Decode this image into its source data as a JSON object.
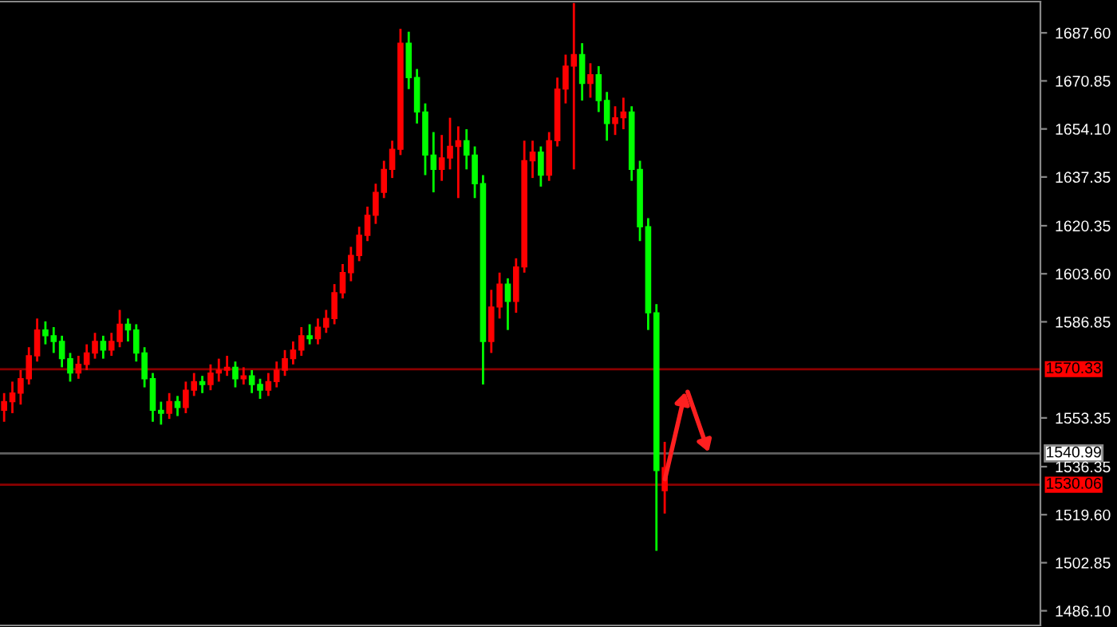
{
  "chart_data": {
    "type": "candlestick",
    "categories": [
      null,
      null,
      null,
      null,
      null,
      null,
      null,
      null,
      null,
      null,
      null,
      null,
      null,
      null,
      null,
      null,
      null,
      null,
      null,
      null,
      null,
      null,
      null,
      null,
      null,
      null,
      null,
      null,
      null,
      null,
      null,
      null,
      null,
      null,
      null,
      null,
      null,
      null,
      null,
      null,
      null,
      null,
      null,
      null,
      null,
      null,
      null,
      null,
      null,
      null,
      null,
      null,
      null,
      null,
      null,
      null,
      null,
      null,
      null,
      null,
      null,
      null,
      null,
      null,
      null,
      null,
      null,
      null,
      null,
      null,
      null,
      null,
      null,
      null,
      null,
      null,
      null,
      null,
      null,
      null,
      null,
      null,
      null,
      null,
      null,
      null,
      null,
      null,
      null,
      null,
      null,
      null,
      null,
      null,
      null,
      null,
      null,
      null,
      null,
      null,
      null,
      null,
      null,
      null,
      null,
      null,
      null,
      null,
      null,
      null,
      null,
      null,
      null,
      null,
      null,
      null,
      null,
      null,
      null,
      null,
      null,
      null,
      null,
      null,
      null,
      null
    ],
    "ohlc": [
      [
        1556,
        1562,
        1552,
        1559
      ],
      [
        1559,
        1566,
        1555,
        1562
      ],
      [
        1562,
        1570,
        1558,
        1567
      ],
      [
        1567,
        1578,
        1565,
        1575
      ],
      [
        1575,
        1588,
        1573,
        1584
      ],
      [
        1584,
        1587,
        1579,
        1582
      ],
      [
        1582,
        1585,
        1576,
        1580
      ],
      [
        1580,
        1582,
        1571,
        1574
      ],
      [
        1574,
        1576,
        1566,
        1569
      ],
      [
        1569,
        1575,
        1567,
        1572
      ],
      [
        1572,
        1579,
        1570,
        1576
      ],
      [
        1576,
        1583,
        1574,
        1580
      ],
      [
        1580,
        1582,
        1574,
        1577
      ],
      [
        1577,
        1583,
        1575,
        1580
      ],
      [
        1580,
        1591,
        1578,
        1586
      ],
      [
        1586,
        1588,
        1580,
        1584
      ],
      [
        1584,
        1586,
        1573,
        1576
      ],
      [
        1576,
        1578,
        1564,
        1567
      ],
      [
        1567,
        1569,
        1552,
        1556
      ],
      [
        1556,
        1559,
        1551,
        1555
      ],
      [
        1555,
        1562,
        1553,
        1559
      ],
      [
        1559,
        1561,
        1554,
        1557
      ],
      [
        1557,
        1566,
        1555,
        1563
      ],
      [
        1563,
        1569,
        1561,
        1566
      ],
      [
        1566,
        1568,
        1562,
        1565
      ],
      [
        1565,
        1572,
        1563,
        1569
      ],
      [
        1569,
        1574,
        1566,
        1570
      ],
      [
        1570,
        1575,
        1568,
        1571
      ],
      [
        1571,
        1573,
        1564,
        1567
      ],
      [
        1567,
        1571,
        1565,
        1568
      ],
      [
        1568,
        1570,
        1562,
        1565
      ],
      [
        1565,
        1567,
        1560,
        1563
      ],
      [
        1563,
        1569,
        1561,
        1566
      ],
      [
        1566,
        1573,
        1564,
        1570
      ],
      [
        1570,
        1577,
        1568,
        1574
      ],
      [
        1574,
        1580,
        1572,
        1577
      ],
      [
        1577,
        1585,
        1575,
        1582
      ],
      [
        1582,
        1586,
        1579,
        1581
      ],
      [
        1581,
        1588,
        1579,
        1585
      ],
      [
        1585,
        1591,
        1583,
        1588
      ],
      [
        1588,
        1600,
        1586,
        1597
      ],
      [
        1597,
        1607,
        1595,
        1604
      ],
      [
        1604,
        1613,
        1601,
        1610
      ],
      [
        1610,
        1620,
        1608,
        1617
      ],
      [
        1617,
        1627,
        1615,
        1624
      ],
      [
        1624,
        1635,
        1621,
        1632
      ],
      [
        1632,
        1643,
        1630,
        1640
      ],
      [
        1640,
        1650,
        1637,
        1647
      ],
      [
        1647,
        1689,
        1645,
        1684
      ],
      [
        1684,
        1688,
        1668,
        1672
      ],
      [
        1672,
        1675,
        1656,
        1660
      ],
      [
        1660,
        1663,
        1638,
        1645
      ],
      [
        1645,
        1653,
        1632,
        1640
      ],
      [
        1640,
        1652,
        1636,
        1644
      ],
      [
        1644,
        1658,
        1640,
        1648
      ],
      [
        1648,
        1655,
        1630,
        1650
      ],
      [
        1650,
        1654,
        1640,
        1645
      ],
      [
        1645,
        1648,
        1630,
        1635
      ],
      [
        1635,
        1638,
        1565,
        1580
      ],
      [
        1580,
        1598,
        1576,
        1592
      ],
      [
        1592,
        1604,
        1588,
        1600
      ],
      [
        1600,
        1602,
        1584,
        1594
      ],
      [
        1594,
        1609,
        1590,
        1606
      ],
      [
        1606,
        1650,
        1604,
        1643
      ],
      [
        1643,
        1650,
        1637,
        1646
      ],
      [
        1646,
        1648,
        1634,
        1638
      ],
      [
        1638,
        1653,
        1636,
        1650
      ],
      [
        1650,
        1672,
        1648,
        1668
      ],
      [
        1668,
        1680,
        1663,
        1676
      ],
      [
        1676,
        1698,
        1640,
        1680
      ],
      [
        1680,
        1684,
        1664,
        1670
      ],
      [
        1670,
        1677,
        1665,
        1673
      ],
      [
        1673,
        1676,
        1660,
        1664
      ],
      [
        1664,
        1667,
        1650,
        1656
      ],
      [
        1656,
        1662,
        1652,
        1658
      ],
      [
        1658,
        1665,
        1654,
        1660
      ],
      [
        1660,
        1662,
        1636,
        1640
      ],
      [
        1640,
        1643,
        1615,
        1620
      ],
      [
        1620,
        1623,
        1584,
        1590
      ],
      [
        1590,
        1593,
        1507,
        1535
      ],
      [
        1528,
        1545,
        1520,
        1536
      ],
      null,
      null,
      null,
      null,
      null,
      null,
      null,
      null,
      null,
      null,
      null,
      null,
      null,
      null,
      null,
      null,
      null,
      null,
      null,
      null,
      null,
      null,
      null,
      null,
      null,
      null,
      null,
      null,
      null,
      null,
      null,
      null,
      null,
      null,
      null,
      null,
      null,
      null,
      null,
      null,
      null,
      null,
      null,
      null,
      null
    ],
    "colors": [
      "#ff0000",
      "#ff0000",
      "#ff0000",
      "#ff0000",
      "#ff0000",
      "#00ff00",
      "#00ff00",
      "#00ff00",
      "#00ff00",
      "#ff0000",
      "#ff0000",
      "#ff0000",
      "#00ff00",
      "#ff0000",
      "#ff0000",
      "#00ff00",
      "#00ff00",
      "#00ff00",
      "#00ff00",
      "#00ff00",
      "#ff0000",
      "#00ff00",
      "#ff0000",
      "#ff0000",
      "#00ff00",
      "#ff0000",
      "#ff0000",
      "#ff0000",
      "#00ff00",
      "#ff0000",
      "#00ff00",
      "#00ff00",
      "#ff0000",
      "#ff0000",
      "#ff0000",
      "#ff0000",
      "#ff0000",
      "#00ff00",
      "#ff0000",
      "#ff0000",
      "#ff0000",
      "#ff0000",
      "#ff0000",
      "#ff0000",
      "#ff0000",
      "#ff0000",
      "#ff0000",
      "#ff0000",
      "#ff0000",
      "#00ff00",
      "#00ff00",
      "#00ff00",
      "#00ff00",
      "#ff0000",
      "#ff0000",
      "#ff0000",
      "#00ff00",
      "#00ff00",
      "#00ff00",
      "#ff0000",
      "#ff0000",
      "#00ff00",
      "#ff0000",
      "#ff0000",
      "#ff0000",
      "#00ff00",
      "#ff0000",
      "#ff0000",
      "#ff0000",
      "#ff0000",
      "#00ff00",
      "#ff0000",
      "#00ff00",
      "#00ff00",
      "#ff0000",
      "#ff0000",
      "#00ff00",
      "#00ff00",
      "#00ff00",
      "#00ff00",
      "#ff0000",
      null,
      null,
      null,
      null,
      null,
      null,
      null,
      null,
      null,
      null,
      null,
      null,
      null,
      null,
      null,
      null,
      null,
      null,
      null,
      null,
      null,
      null,
      null,
      null,
      null,
      null,
      null,
      null,
      null,
      null,
      null,
      null,
      null,
      null,
      null,
      null,
      null,
      null,
      null,
      null,
      null,
      null,
      null,
      null,
      null
    ],
    "ylim": [
      1481,
      1698.5
    ],
    "yticks": [
      {
        "value": 1687.6,
        "label": "1687.60"
      },
      {
        "value": 1670.85,
        "label": "1670.85"
      },
      {
        "value": 1654.1,
        "label": "1654.10"
      },
      {
        "value": 1637.35,
        "label": "1637.35"
      },
      {
        "value": 1620.35,
        "label": "1620.35"
      },
      {
        "value": 1603.6,
        "label": "1603.60"
      },
      {
        "value": 1586.85,
        "label": "1586.85"
      },
      {
        "value": 1553.35,
        "label": "1553.35"
      },
      {
        "value": 1536.35,
        "label": "1536.35"
      },
      {
        "value": 1519.6,
        "label": "1519.60"
      },
      {
        "value": 1502.85,
        "label": "1502.85"
      },
      {
        "value": 1486.1,
        "label": "1486.10"
      }
    ],
    "tick_labels": "y",
    "grid": false,
    "ref_lines": [
      {
        "axis": "y",
        "value": 1570.33,
        "label": "1570.33",
        "color": "#8b0000"
      },
      {
        "axis": "y",
        "value": 1540.99,
        "label": "1540.99",
        "color": "#606060"
      },
      {
        "axis": "y",
        "value": 1530.06,
        "label": "1530.06",
        "color": "#8b0000"
      }
    ]
  }
}
